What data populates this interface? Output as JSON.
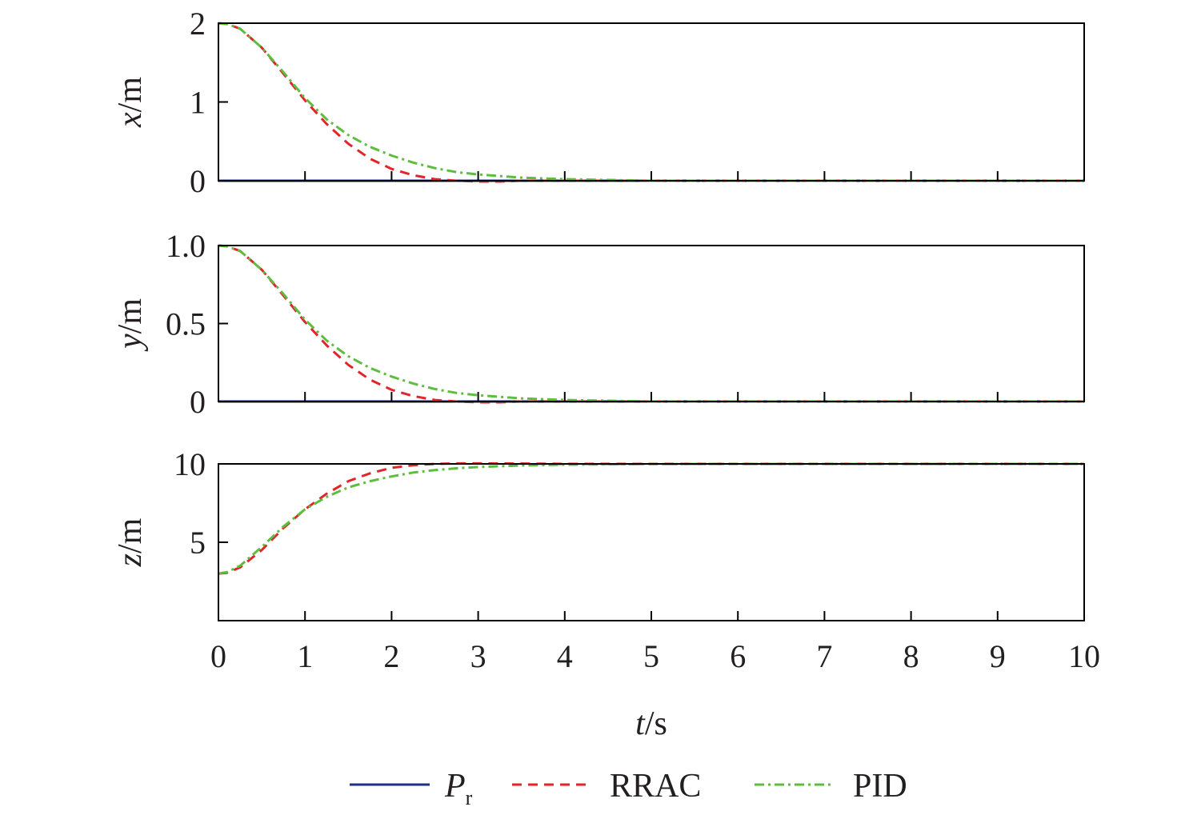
{
  "chart_data": [
    {
      "type": "line",
      "ylabel_var": "x",
      "ylabel_unit": "/m",
      "ylim": [
        0,
        2
      ],
      "yticks": [
        "0",
        "1",
        "2"
      ],
      "ytick_values": [
        0,
        1,
        2
      ],
      "series": [
        {
          "ref": "Pr",
          "x": [
            0,
            10
          ],
          "y": [
            0,
            0
          ]
        },
        {
          "ref": "RRAC",
          "x": [
            0,
            0.1,
            0.25,
            0.5,
            0.75,
            1.0,
            1.25,
            1.5,
            1.75,
            2.0,
            2.25,
            2.5,
            2.75,
            3.0,
            3.25,
            3.5,
            4.0,
            5.0,
            6.0,
            10.0
          ],
          "y": [
            2.0,
            1.99,
            1.93,
            1.69,
            1.36,
            1.02,
            0.72,
            0.47,
            0.28,
            0.15,
            0.07,
            0.02,
            0.0,
            -0.01,
            -0.01,
            0.0,
            0.0,
            0.0,
            0.0,
            0.0
          ]
        },
        {
          "ref": "PID",
          "x": [
            0,
            0.1,
            0.25,
            0.5,
            0.75,
            1.0,
            1.25,
            1.5,
            1.75,
            2.0,
            2.25,
            2.5,
            2.75,
            3.0,
            3.5,
            4.0,
            4.5,
            5.0,
            6.0,
            10.0
          ],
          "y": [
            2.0,
            1.99,
            1.93,
            1.69,
            1.38,
            1.05,
            0.78,
            0.58,
            0.43,
            0.32,
            0.23,
            0.16,
            0.11,
            0.08,
            0.04,
            0.02,
            0.01,
            0.0,
            0.0,
            0.0
          ]
        }
      ]
    },
    {
      "type": "line",
      "ylabel_var": "y",
      "ylabel_unit": "/m",
      "ylim": [
        0,
        1.0
      ],
      "yticks": [
        "0",
        "0.5",
        "1.0"
      ],
      "ytick_values": [
        0,
        0.5,
        1.0
      ],
      "series": [
        {
          "ref": "Pr",
          "x": [
            0,
            10
          ],
          "y": [
            0,
            0
          ]
        },
        {
          "ref": "RRAC",
          "x": [
            0,
            0.1,
            0.25,
            0.5,
            0.75,
            1.0,
            1.25,
            1.5,
            1.75,
            2.0,
            2.25,
            2.5,
            2.75,
            3.0,
            3.25,
            3.5,
            4.0,
            5.0,
            6.0,
            10.0
          ],
          "y": [
            1.0,
            0.995,
            0.965,
            0.845,
            0.68,
            0.51,
            0.36,
            0.235,
            0.14,
            0.075,
            0.035,
            0.01,
            0.0,
            -0.005,
            -0.005,
            0.0,
            0.0,
            0.0,
            0.0,
            0.0
          ]
        },
        {
          "ref": "PID",
          "x": [
            0,
            0.1,
            0.25,
            0.5,
            0.75,
            1.0,
            1.25,
            1.5,
            1.75,
            2.0,
            2.25,
            2.5,
            2.75,
            3.0,
            3.5,
            4.0,
            4.5,
            5.0,
            6.0,
            10.0
          ],
          "y": [
            1.0,
            0.995,
            0.965,
            0.845,
            0.69,
            0.525,
            0.39,
            0.29,
            0.215,
            0.16,
            0.115,
            0.08,
            0.055,
            0.04,
            0.02,
            0.01,
            0.005,
            0.0,
            0.0,
            0.0
          ]
        }
      ]
    },
    {
      "type": "line",
      "ylabel_var": "z",
      "ylabel_unit": "/m",
      "ylim": [
        0,
        10
      ],
      "yticks": [
        "5",
        "10"
      ],
      "ytick_values": [
        5,
        10
      ],
      "series": [
        {
          "ref": "Pr",
          "x": [
            0,
            10
          ],
          "y": [
            0,
            0
          ],
          "hidden": true
        },
        {
          "ref": "RRAC",
          "x": [
            0,
            0.1,
            0.25,
            0.5,
            0.75,
            1.0,
            1.25,
            1.5,
            1.75,
            2.0,
            2.25,
            2.5,
            2.75,
            3.0,
            3.5,
            4.0,
            5.0,
            10.0
          ],
          "y": [
            3.0,
            3.05,
            3.4,
            4.5,
            5.9,
            7.1,
            8.1,
            8.9,
            9.4,
            9.75,
            9.92,
            10.0,
            10.03,
            10.03,
            10.02,
            10.0,
            10.0,
            10.0
          ]
        },
        {
          "ref": "PID",
          "x": [
            0,
            0.1,
            0.25,
            0.5,
            0.75,
            1.0,
            1.25,
            1.5,
            1.75,
            2.0,
            2.25,
            2.5,
            2.75,
            3.0,
            3.5,
            4.0,
            5.0,
            10.0
          ],
          "y": [
            3.0,
            3.1,
            3.5,
            4.7,
            6.0,
            7.1,
            7.9,
            8.5,
            8.9,
            9.2,
            9.45,
            9.6,
            9.72,
            9.8,
            9.9,
            9.95,
            9.99,
            10.0
          ]
        }
      ]
    }
  ],
  "x_axis": {
    "ticks": [
      "0",
      "1",
      "2",
      "3",
      "4",
      "5",
      "6",
      "7",
      "8",
      "9",
      "10"
    ],
    "tick_values": [
      0,
      1,
      2,
      3,
      4,
      5,
      6,
      7,
      8,
      9,
      10
    ],
    "xlim": [
      0,
      10
    ],
    "label_var": "t",
    "label_unit": "/s"
  },
  "legend": {
    "placement": "bottom",
    "items": [
      {
        "ref": "Pr",
        "label_main": "P",
        "label_sub": "r",
        "color": "#1f2f8a",
        "style": "solid"
      },
      {
        "ref": "RRAC",
        "label": "RRAC",
        "color": "#e0262b",
        "style": "dashed"
      },
      {
        "ref": "PID",
        "label": "PID",
        "color": "#5ebd3e",
        "style": "dashdot"
      }
    ]
  }
}
